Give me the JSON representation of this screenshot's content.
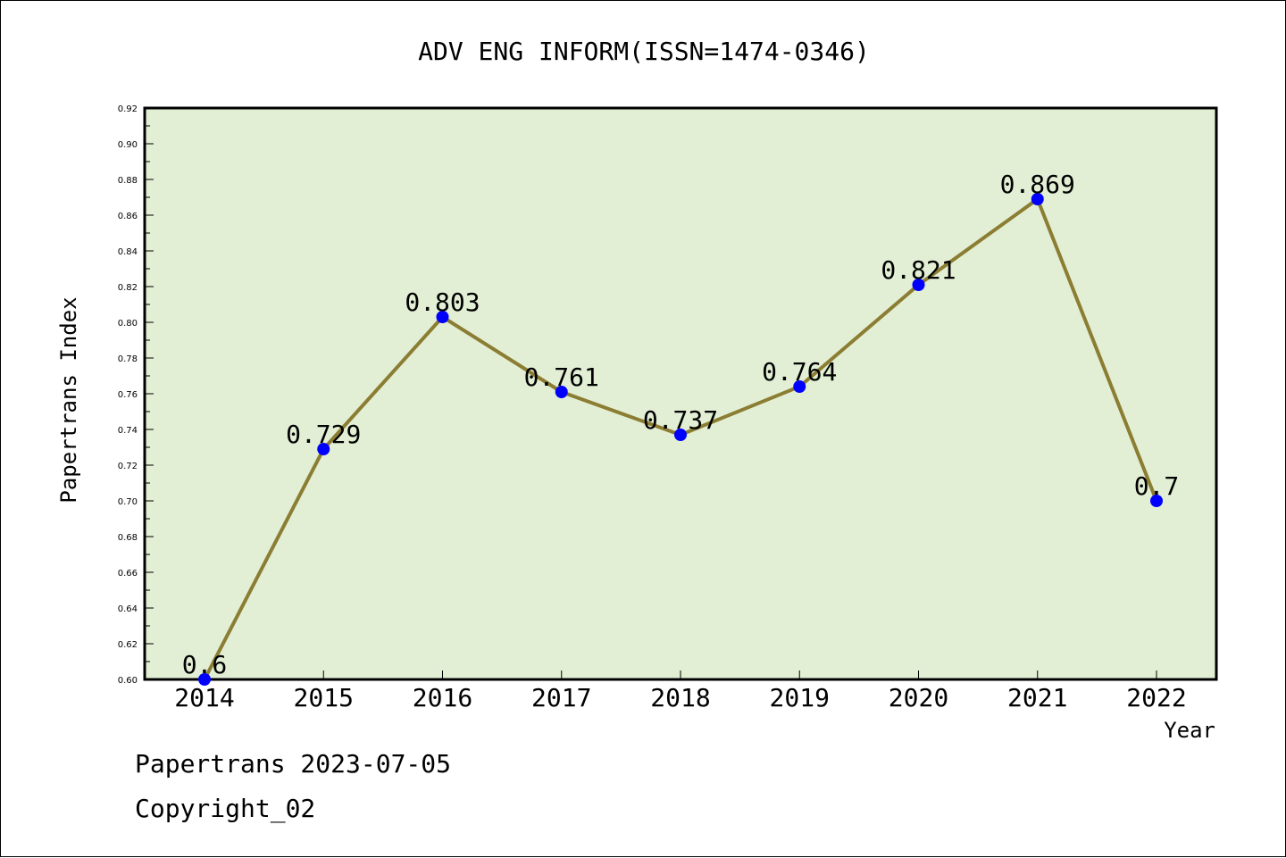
{
  "chart_data": {
    "type": "line",
    "title": "ADV ENG INFORM(ISSN=1474-0346)",
    "xlabel": "Year",
    "ylabel": "Papertrans Index",
    "categories": [
      "2014",
      "2015",
      "2016",
      "2017",
      "2018",
      "2019",
      "2020",
      "2021",
      "2022"
    ],
    "series": [
      {
        "values": [
          0.6,
          0.729,
          0.803,
          0.761,
          0.737,
          0.764,
          0.821,
          0.869,
          0.7
        ],
        "labels": [
          "0.6",
          "0.729",
          "0.803",
          "0.761",
          "0.737",
          "0.764",
          "0.821",
          "0.869",
          "0.7"
        ]
      }
    ],
    "ylim": [
      0.6,
      0.92
    ],
    "yticks": [
      "0.60",
      "0.62",
      "0.64",
      "0.66",
      "0.68",
      "0.70",
      "0.72",
      "0.74",
      "0.76",
      "0.78",
      "0.80",
      "0.82",
      "0.84",
      "0.86",
      "0.88",
      "0.90",
      "0.92"
    ],
    "grid": false,
    "colors": {
      "plot_background": "#e2efd5",
      "line": "#8b7d32",
      "marker": "#0000ff"
    }
  },
  "footer": {
    "source": "Papertrans 2023-07-05",
    "copyright": "Copyright_02"
  }
}
